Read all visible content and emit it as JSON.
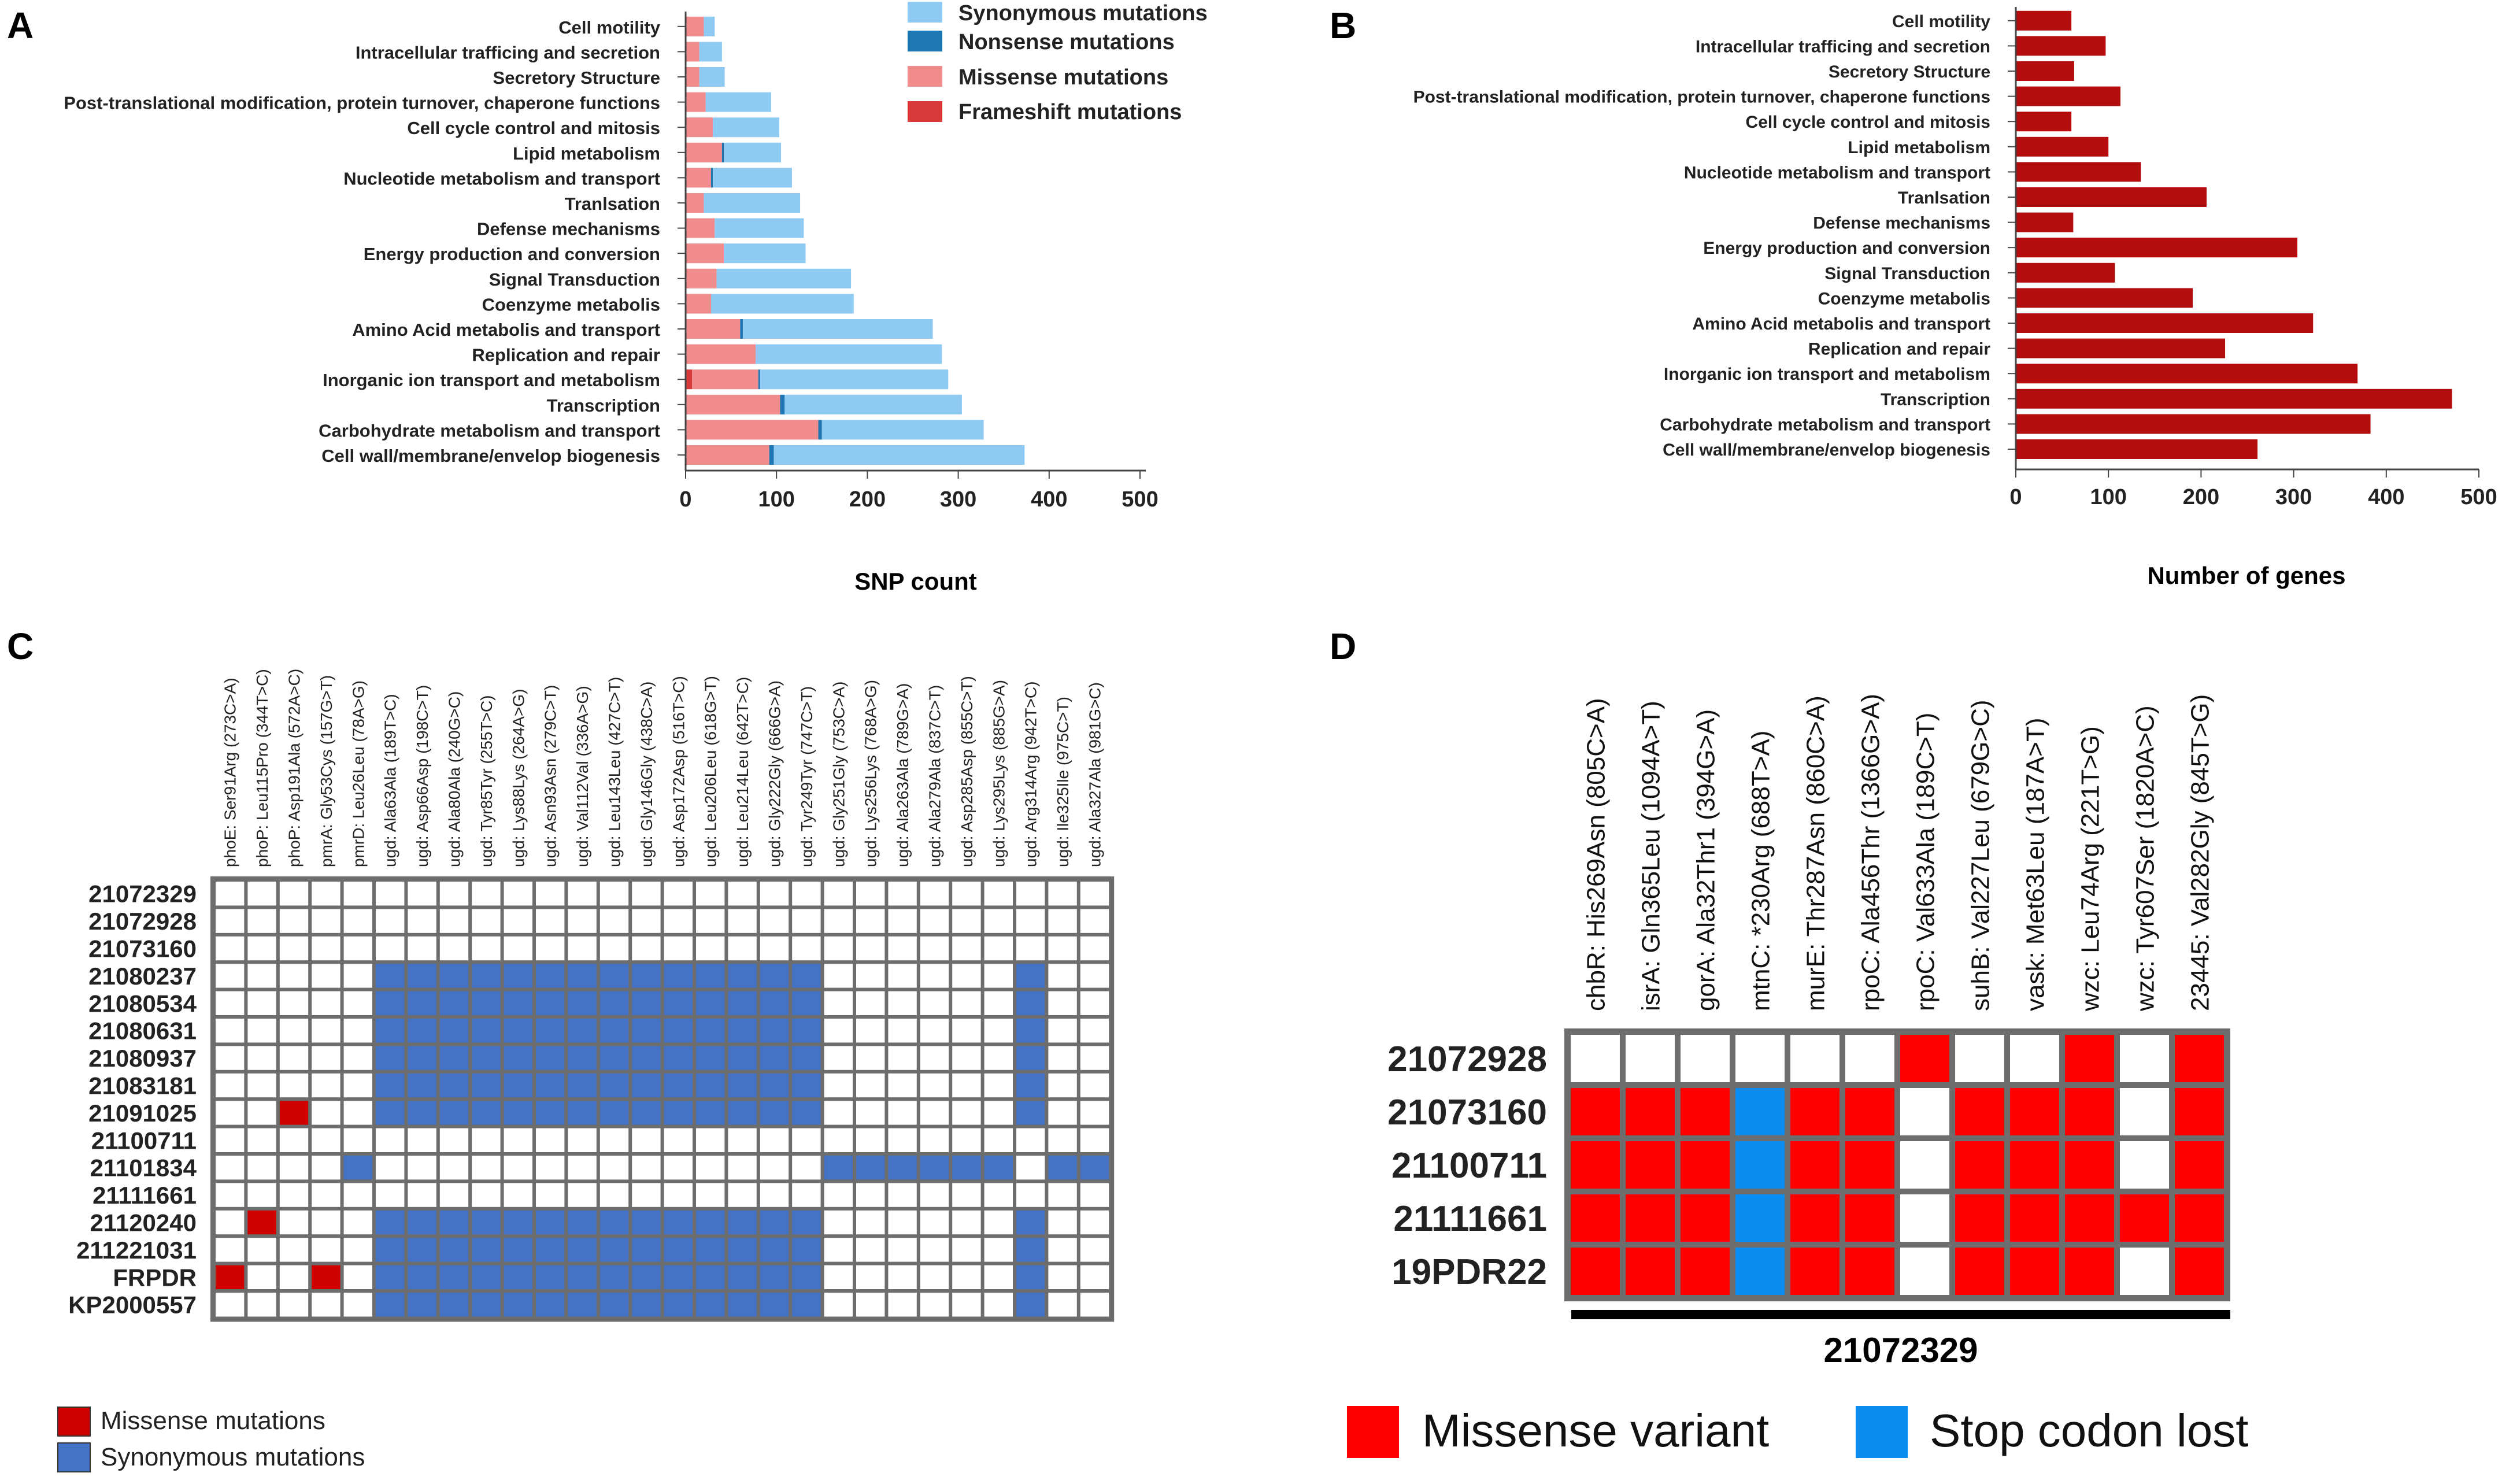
{
  "panels": {
    "a": "A",
    "b": "B",
    "c": "C",
    "d": "D"
  },
  "categories": [
    "Cell motility",
    "Intracellular trafficing and secretion",
    "Secretory Structure",
    "Post-translational modification, protein turnover, chaperone functions",
    "Cell cycle control and mitosis",
    "Lipid metabolism",
    "Nucleotide metabolism and transport",
    "Tranlsation",
    "Defense mechanisms",
    "Energy production and conversion",
    "Signal Transduction",
    "Coenzyme metabolis",
    "Amino Acid metabolis and transport",
    "Replication and repair",
    "Inorganic ion transport and metabolism",
    "Transcription",
    "Carbohydrate metabolism and transport",
    "Cell wall/membrane/envelop biogenesis"
  ],
  "colors": {
    "synonymous": "#8fcaf3",
    "nonsense": "#1f78b4",
    "missense": "#f08c8c",
    "frameshift": "#d83a3a",
    "genes": "#b30d0d",
    "matrix_missense": "#d00000",
    "matrix_synonymous": "#4472c4",
    "d_missense": "#ff0000",
    "d_stop": "#0a8cf0"
  },
  "chart_data": [
    {
      "type": "bar",
      "title": "A",
      "xlabel": "SNP count",
      "xlim": [
        0,
        500
      ],
      "xticks": [
        0,
        100,
        200,
        300,
        400,
        500
      ],
      "legend": [
        "Synonymous mutations",
        "Nonsense mutations",
        "Missense mutations",
        "Frameshift mutations"
      ],
      "series": [
        {
          "name": "Frameshift mutations",
          "values": [
            0,
            0,
            0,
            0,
            0,
            0,
            0,
            0,
            0,
            0,
            0,
            0,
            0,
            0,
            7,
            0,
            0,
            0
          ]
        },
        {
          "name": "Missense mutations",
          "values": [
            20,
            15,
            15,
            22,
            30,
            40,
            28,
            20,
            32,
            42,
            34,
            28,
            60,
            77,
            73,
            104,
            146,
            92
          ]
        },
        {
          "name": "Nonsense mutations",
          "values": [
            0,
            0,
            0,
            0,
            0,
            2,
            2,
            0,
            0,
            0,
            0,
            0,
            3,
            0,
            2,
            5,
            4,
            5
          ]
        },
        {
          "name": "Synonymous mutations",
          "values": [
            12,
            25,
            28,
            72,
            73,
            63,
            87,
            106,
            98,
            90,
            148,
            157,
            209,
            205,
            207,
            195,
            178,
            276
          ]
        }
      ]
    },
    {
      "type": "bar",
      "title": "B",
      "xlabel": "Number of genes",
      "xlim": [
        0,
        500
      ],
      "xticks": [
        0,
        100,
        200,
        300,
        400,
        500
      ],
      "values": [
        60,
        97,
        63,
        113,
        60,
        100,
        135,
        206,
        62,
        304,
        107,
        191,
        321,
        226,
        369,
        471,
        383,
        261
      ]
    },
    {
      "type": "heatmap",
      "title": "C",
      "columns": [
        "phoE: Ser91Arg (273C>A)",
        "phoP: Leu115Pro (344T>C)",
        "phoP: Asp191Ala (572A>C)",
        "pmrA: Gly53Cys (157G>T)",
        "pmrD: Leu26Leu (78A>G)",
        "ugd: Ala63Ala (189T>C)",
        "ugd: Asp66Asp (198C>T)",
        "ugd: Ala80Ala (240G>C)",
        "ugd: Tyr85Tyr (255T>C)",
        "ugd: Lys88Lys (264A>G)",
        "ugd: Asn93Asn (279C>T)",
        "ugd: Val112Val (336A>G)",
        "ugd: Leu143Leu (427C>T)",
        "ugd: Gly146Gly (438C>A)",
        "ugd: Asp172Asp (516T>C)",
        "ugd: Leu206Leu (618G>T)",
        "ugd: Leu214Leu (642T>C)",
        "ugd: Gly222Gly (666G>A)",
        "ugd: Tyr249Tyr (747C>T)",
        "ugd: Gly251Gly (753C>A)",
        "ugd: Lys256Lys (768A>G)",
        "ugd: Ala263Ala (789G>A)",
        "ugd: Ala279Ala (837C>T)",
        "ugd: Asp285Asp (855C>T)",
        "ugd: Lys295Lys (885G>A)",
        "ugd: Arg314Arg (942T>C)",
        "ugd: Ile325Ile (975C>T)",
        "ugd: Ala327Ala (981G>C)"
      ],
      "rows": [
        "21072329",
        "21072928",
        "21073160",
        "21080237",
        "21080534",
        "21080631",
        "21080937",
        "21083181",
        "21091025",
        "21100711",
        "21101834",
        "21111661",
        "21120240",
        "211221031",
        "FRPDR",
        "KP2000557"
      ],
      "legend": [
        "Missense mutations",
        "Synonymous mutations"
      ],
      "matrix": [
        "............................",
        "............................",
        "............................",
        ".....SSSSSSSSSSSSSS......S..",
        ".....SSSSSSSSSSSSSS......S..",
        ".....SSSSSSSSSSSSSS......S..",
        ".....SSSSSSSSSSSSSS......S..",
        ".....SSSSSSSSSSSSSS......S..",
        "..M..SSSSSSSSSSSSSS......S..",
        "............................",
        "....S..............SSSSSS.SS",
        "............................",
        ".M...SSSSSSSSSSSSSS......S..",
        ".....SSSSSSSSSSSSSS......S..",
        "M..M.SSSSSSSSSSSSSS......S..",
        ".....SSSSSSSSSSSSSS......S.."
      ]
    },
    {
      "type": "heatmap",
      "title": "D",
      "columns": [
        "chbR: His269Asn (805C>A)",
        "isrA: Gln365Leu (1094A>T)",
        "gorA: Ala32Thr1 (394G>A)",
        "mtnC: *230Arg (688T>A)",
        "murE: Thr287Asn (860C>A)",
        "rpoC: Ala456Thr (1366G>A)",
        "rpoC: Val633Ala (189C>T)",
        "suhB: Val227Leu (679G>C)",
        "vask: Met63Leu (187A>T)",
        "wzc: Leu74Arg (221T>G)",
        "wzc: Tyr607Ser (1820A>C)",
        "23445: Val282Gly (845T>G)"
      ],
      "rows": [
        "21072928",
        "21073160",
        "21100711",
        "21111661",
        "19PDR22"
      ],
      "reference": "21072329",
      "legend": [
        "Missense variant",
        "Stop codon lost"
      ],
      "matrix": [
        "......M..M.M",
        "MMMSMM.MMM.M",
        "MMMSMM.MMM.M",
        "MMMSMM.MMMMM",
        "MMMSMM.MMM.M"
      ]
    }
  ]
}
